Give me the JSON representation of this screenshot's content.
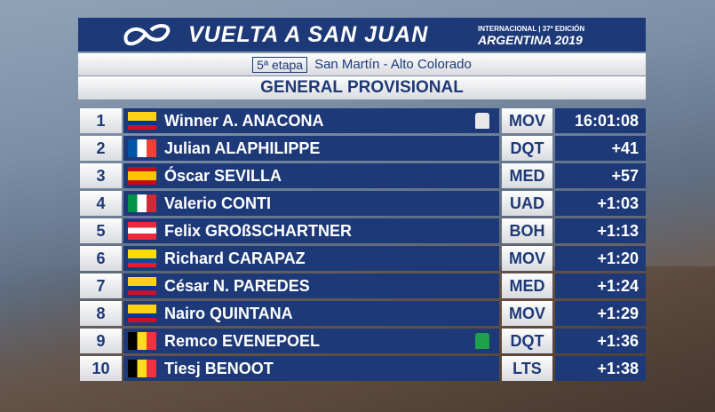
{
  "header": {
    "title": "VUELTA A SAN JUAN",
    "edition": "INTERNACIONAL | 37ª EDICIÓN",
    "subtitle": "ARGENTINA 2019"
  },
  "stage": {
    "number": "5ª etapa",
    "route": "San Martín - Alto Colorado"
  },
  "classification": "GENERAL PROVISIONAL",
  "table": {
    "rows": [
      [
        1,
        "Winner A. ANACONA",
        "MOV",
        "16:01:08"
      ],
      [
        2,
        "Julian ALAPHILIPPE",
        "DQT",
        "+41"
      ],
      [
        3,
        "Óscar SEVILLA",
        "MED",
        "+57"
      ],
      [
        4,
        "Valerio CONTI",
        "UAD",
        "+1:03"
      ],
      [
        5,
        "Felix GROßSCHARTNER",
        "BOH",
        "+1:13"
      ],
      [
        6,
        "Richard CARAPAZ",
        "MOV",
        "+1:20"
      ],
      [
        7,
        "César N. PAREDES",
        "MED",
        "+1:24"
      ],
      [
        8,
        "Nairo QUINTANA",
        "MOV",
        "+1:29"
      ],
      [
        9,
        "Remco EVENEPOEL",
        "DQT",
        "+1:36"
      ],
      [
        10,
        "Tiesj BENOOT",
        "LTS",
        "+1:38"
      ]
    ]
  }
}
